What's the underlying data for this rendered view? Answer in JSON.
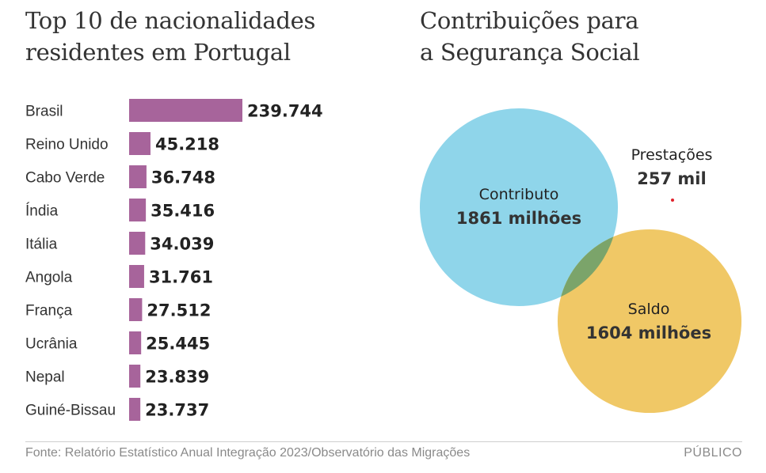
{
  "colors": {
    "bar": "#a7649b",
    "contributo": "#8fd5ea",
    "saldo": "#f0c866",
    "overlap": "#7ba46a",
    "prestacoes_dot": "#e0202a"
  },
  "header": {
    "left_title_line1": "Top 10 de nacionalidades",
    "left_title_line2": "residentes em Portugal",
    "right_title_line1": "Contribuições para",
    "right_title_line2": "a Segurança Social"
  },
  "chart_data": [
    {
      "type": "bar",
      "orientation": "horizontal",
      "title": "Top 10 de nacionalidades residentes em Portugal",
      "categories": [
        "Brasil",
        "Reino Unido",
        "Cabo Verde",
        "Índia",
        "Itália",
        "Angola",
        "França",
        "Ucrânia",
        "Nepal",
        "Guiné-Bissau"
      ],
      "values": [
        239744,
        45218,
        36748,
        35416,
        34039,
        31761,
        27512,
        25445,
        23839,
        23737
      ],
      "value_labels": [
        "239.744",
        "45.218",
        "36.748",
        "35.416",
        "34.039",
        "31.761",
        "27.512",
        "25.445",
        "23.839",
        "23.737"
      ],
      "xlim": [
        0,
        239744
      ]
    },
    {
      "type": "venn",
      "title": "Contribuições para a Segurança Social",
      "sets": [
        {
          "name": "Contributo",
          "value": 1861,
          "unit": "milhões",
          "label": "1861 milhões"
        },
        {
          "name": "Saldo",
          "value": 1604,
          "unit": "milhões",
          "label": "1604 milhões"
        },
        {
          "name": "Prestações",
          "value": 257,
          "unit": "mil",
          "label": "257 mil"
        }
      ]
    }
  ],
  "footer": {
    "source": "Fonte: Relatório Estatístico Anual Integração 2023/Observatório das Migrações",
    "brand": "PÚBLICO"
  }
}
